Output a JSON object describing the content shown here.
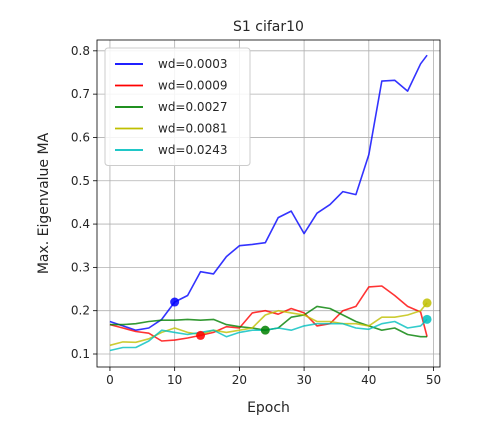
{
  "chart_data": {
    "type": "line",
    "title": "S1 cifar10",
    "xlabel": "Epoch",
    "ylabel": "Max. Eigenvalue MA",
    "xlim": [
      -2,
      51
    ],
    "ylim": [
      0.07,
      0.825
    ],
    "xticks": [
      0,
      10,
      20,
      30,
      40,
      50
    ],
    "yticks": [
      0.1,
      0.2,
      0.3,
      0.4,
      0.5,
      0.6,
      0.7,
      0.8
    ],
    "grid": true,
    "legend_position": "upper-left",
    "x": [
      0,
      2,
      4,
      6,
      8,
      10,
      12,
      14,
      16,
      18,
      20,
      22,
      24,
      26,
      28,
      30,
      32,
      34,
      36,
      38,
      40,
      42,
      44,
      46,
      48,
      49
    ],
    "series": [
      {
        "name": "wd=0.0003",
        "color": "#0000ff",
        "values": [
          0.175,
          0.165,
          0.155,
          0.16,
          0.18,
          0.22,
          0.235,
          0.29,
          0.285,
          0.325,
          0.35,
          0.353,
          0.357,
          0.415,
          0.43,
          0.378,
          0.425,
          0.445,
          0.475,
          0.468,
          0.56,
          0.73,
          0.732,
          0.707,
          0.77,
          0.79
        ],
        "marker": {
          "x": 10,
          "y": 0.22
        }
      },
      {
        "name": "wd=0.0009",
        "color": "#ff0000",
        "values": [
          0.168,
          0.16,
          0.152,
          0.148,
          0.13,
          0.132,
          0.137,
          0.143,
          0.15,
          0.163,
          0.16,
          0.195,
          0.2,
          0.192,
          0.205,
          0.195,
          0.165,
          0.17,
          0.2,
          0.21,
          0.255,
          0.257,
          0.235,
          0.21,
          0.197,
          0.14
        ],
        "marker": {
          "x": 14,
          "y": 0.143
        }
      },
      {
        "name": "wd=0.0027",
        "color": "#008000",
        "values": [
          0.168,
          0.168,
          0.17,
          0.175,
          0.178,
          0.178,
          0.18,
          0.178,
          0.18,
          0.168,
          0.163,
          0.16,
          0.155,
          0.16,
          0.185,
          0.19,
          0.21,
          0.205,
          0.19,
          0.175,
          0.165,
          0.155,
          0.16,
          0.145,
          0.14,
          0.14
        ],
        "marker": {
          "x": 24,
          "y": 0.155
        }
      },
      {
        "name": "wd=0.0081",
        "color": "#bfbf00",
        "values": [
          0.12,
          0.128,
          0.127,
          0.135,
          0.15,
          0.16,
          0.15,
          0.145,
          0.155,
          0.15,
          0.155,
          0.16,
          0.19,
          0.2,
          0.195,
          0.19,
          0.175,
          0.175,
          0.17,
          0.17,
          0.165,
          0.185,
          0.185,
          0.19,
          0.2,
          0.218
        ],
        "marker": {
          "x": 49,
          "y": 0.218
        }
      },
      {
        "name": "wd=0.0243",
        "color": "#00bfbf",
        "values": [
          0.108,
          0.115,
          0.115,
          0.13,
          0.155,
          0.15,
          0.145,
          0.15,
          0.155,
          0.14,
          0.15,
          0.155,
          0.155,
          0.16,
          0.155,
          0.165,
          0.17,
          0.17,
          0.17,
          0.16,
          0.157,
          0.17,
          0.175,
          0.16,
          0.165,
          0.18
        ],
        "marker": {
          "x": 49,
          "y": 0.18
        }
      }
    ]
  }
}
